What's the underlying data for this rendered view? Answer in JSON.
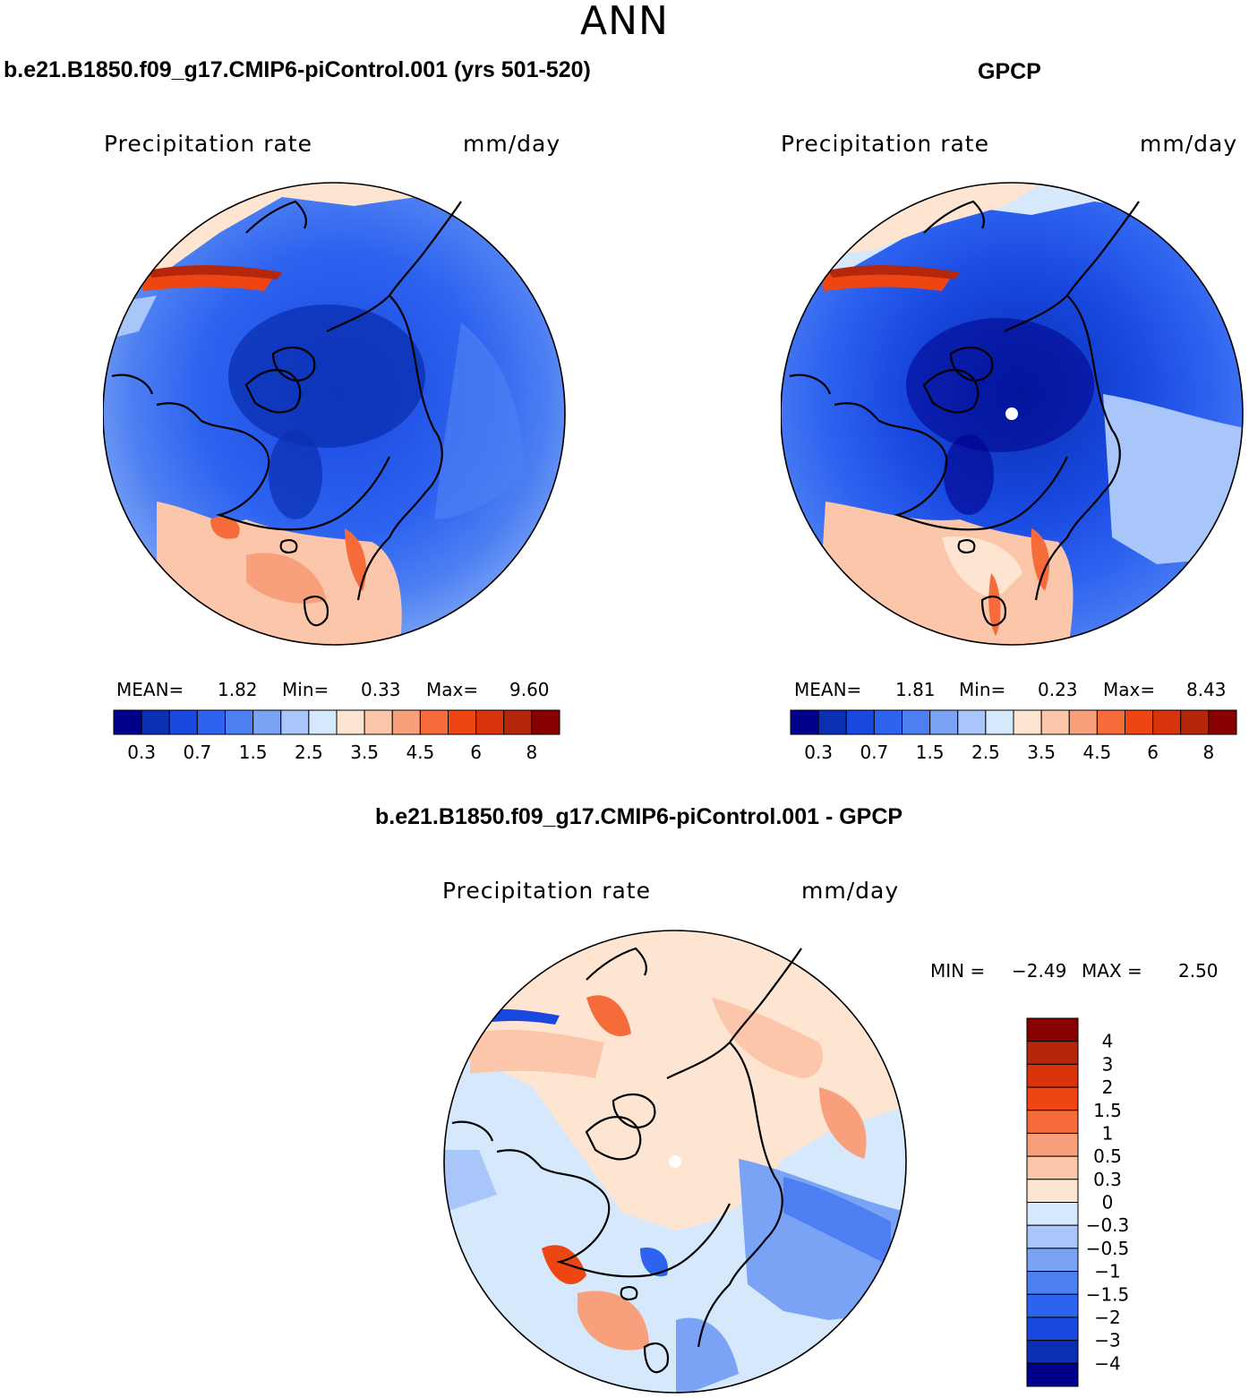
{
  "season": "ANN",
  "panels": {
    "model": {
      "title": "b.e21.B1850.f09_g17.CMIP6-piControl.001 (yrs 501-520)",
      "var_name": "Precipitation rate",
      "units": "mm/day",
      "mean_label": "MEAN=",
      "mean": "1.82",
      "min_label": "Min=",
      "min": "0.33",
      "max_label": "Max=",
      "max": "9.60"
    },
    "obs": {
      "title": "GPCP",
      "var_name": "Precipitation rate",
      "units": "mm/day",
      "mean_label": "MEAN=",
      "mean": "1.81",
      "min_label": "Min=",
      "min": "0.23",
      "max_label": "Max=",
      "max": "8.43"
    },
    "diff": {
      "title": "b.e21.B1850.f09_g17.CMIP6-piControl.001 - GPCP",
      "var_name": "Precipitation rate",
      "units": "mm/day",
      "min_label": "MIN =",
      "min": "−2.49",
      "max_label": "MAX =",
      "max": "2.50"
    }
  },
  "colors": {
    "abs_scale": [
      "#00008b",
      "#0a2fb0",
      "#1848e0",
      "#2e63f0",
      "#4d7ff2",
      "#7aa3f5",
      "#a8c6fa",
      "#d6e8fc",
      "#fde5d2",
      "#fbc6a9",
      "#f7a07b",
      "#f56b3a",
      "#ee4612",
      "#d8330b",
      "#b5270a",
      "#880000"
    ],
    "diff_scale": [
      "#880000",
      "#b5270a",
      "#d8330b",
      "#ee4612",
      "#f56b3a",
      "#f7a07b",
      "#fbc6a9",
      "#fde5d2",
      "#d6e8fc",
      "#a8c6fa",
      "#7aa3f5",
      "#4d7ff2",
      "#2e63f0",
      "#1848e0",
      "#0a2fb0",
      "#00008b"
    ]
  },
  "chart_data": [
    {
      "type": "heatmap",
      "projection": "north-polar-stereographic",
      "title": "b.e21.B1850.f09_g17.CMIP6-piControl.001 (yrs 501-520)",
      "variable": "Precipitation rate",
      "units": "mm/day",
      "mean": 1.82,
      "min": 0.33,
      "max": 9.6,
      "levels": [
        0.2,
        0.3,
        0.5,
        0.7,
        1,
        1.5,
        2,
        2.5,
        3,
        3.5,
        4,
        4.5,
        5,
        6,
        7,
        8
      ],
      "colorbar_tick_labels": [
        "0.3",
        "0.7",
        "1.5",
        "2.5",
        "3.5",
        "4.5",
        "6",
        "8"
      ]
    },
    {
      "type": "heatmap",
      "projection": "north-polar-stereographic",
      "title": "GPCP",
      "variable": "Precipitation rate",
      "units": "mm/day",
      "mean": 1.81,
      "min": 0.23,
      "max": 8.43,
      "levels": [
        0.2,
        0.3,
        0.5,
        0.7,
        1,
        1.5,
        2,
        2.5,
        3,
        3.5,
        4,
        4.5,
        5,
        6,
        7,
        8
      ],
      "colorbar_tick_labels": [
        "0.3",
        "0.7",
        "1.5",
        "2.5",
        "3.5",
        "4.5",
        "6",
        "8"
      ]
    },
    {
      "type": "heatmap",
      "projection": "north-polar-stereographic",
      "title": "b.e21.B1850.f09_g17.CMIP6-piControl.001 - GPCP",
      "variable": "Precipitation rate",
      "units": "mm/day",
      "min": -2.49,
      "max": 2.5,
      "colorbar_tick_labels": [
        "4",
        "3",
        "2",
        "1.5",
        "1",
        "0.5",
        "0.3",
        "0",
        "−0.3",
        "−0.5",
        "−1",
        "−1.5",
        "−2",
        "−3",
        "−4"
      ]
    }
  ]
}
